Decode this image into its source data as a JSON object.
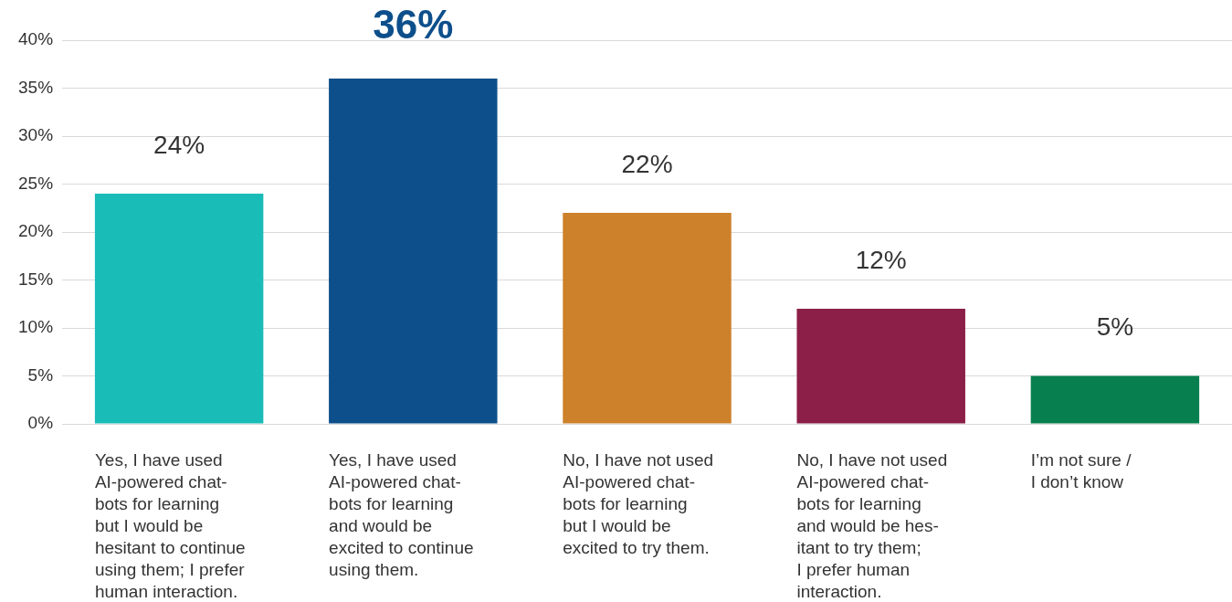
{
  "chart_data": {
    "type": "bar",
    "categories": [
      "Yes, I have used\nAI-powered chat-\nbots for learning\nbut I would be\nhesitant to continue\nusing them; I prefer\nhuman interaction.",
      "Yes, I have used\nAI-powered chat-\nbots for learning\nand would be\nexcited to continue\nusing them.",
      "No, I have not used\nAI-powered chat-\nbots for learning\nbut I would be\nexcited to try them.",
      "No, I have not used\nAI-powered chat-\nbots for learning\nand would be hes-\nitant to try them;\nI prefer human\ninteraction.",
      "I’m not sure /\nI don’t know"
    ],
    "values": [
      24,
      36,
      22,
      12,
      5
    ],
    "colors": [
      "#1abcb8",
      "#0d4f8b",
      "#cd812a",
      "#8b1f47",
      "#087f4f"
    ],
    "value_labels": [
      "24%",
      "36%",
      "22%",
      "12%",
      "5%"
    ],
    "ylim": [
      0,
      40
    ],
    "yticks": [
      {
        "value": 0,
        "label": "0%"
      },
      {
        "value": 5,
        "label": "5%"
      },
      {
        "value": 10,
        "label": "10%"
      },
      {
        "value": 15,
        "label": "15%"
      },
      {
        "value": 20,
        "label": "20%"
      },
      {
        "value": 25,
        "label": "25%"
      },
      {
        "value": 30,
        "label": "30%"
      },
      {
        "value": 35,
        "label": "35%"
      },
      {
        "value": 40,
        "label": "40%"
      }
    ],
    "grid": "y"
  }
}
